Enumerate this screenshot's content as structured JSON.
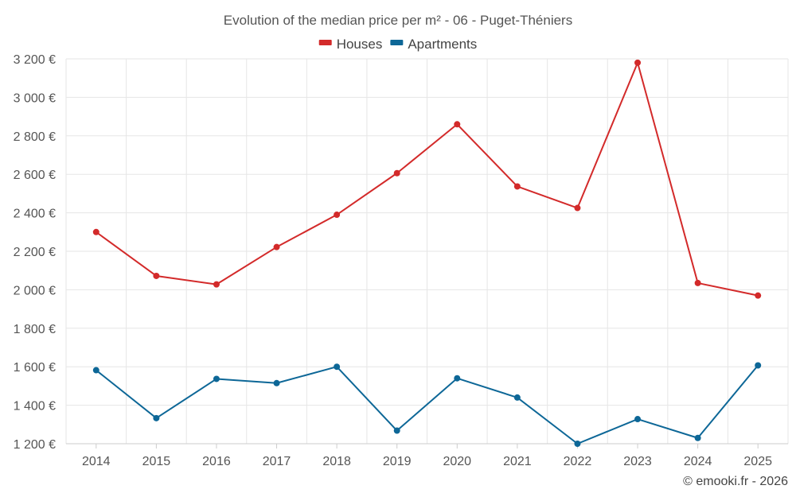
{
  "chart_data": {
    "type": "line",
    "title": "Evolution of the median price per m² - 06 - Puget-Théniers",
    "xlabel": "",
    "ylabel": "",
    "categories": [
      "2014",
      "2015",
      "2016",
      "2017",
      "2018",
      "2019",
      "2020",
      "2021",
      "2022",
      "2023",
      "2024",
      "2025"
    ],
    "ylim": [
      1200,
      3200
    ],
    "yticks": [
      1200,
      1400,
      1600,
      1800,
      2000,
      2200,
      2400,
      2600,
      2800,
      3000,
      3200
    ],
    "ytick_labels": [
      "1 200 €",
      "1 400 €",
      "1 600 €",
      "1 800 €",
      "2 000 €",
      "2 200 €",
      "2 400 €",
      "2 600 €",
      "2 800 €",
      "3 000 €",
      "3 200 €"
    ],
    "grid": true,
    "legend_position": "top-center",
    "series": [
      {
        "name": "Houses",
        "color": "#d32a2a",
        "values": [
          2300,
          2072,
          2028,
          2222,
          2390,
          2606,
          2860,
          2537,
          2425,
          3180,
          2035,
          1970
        ]
      },
      {
        "name": "Apartments",
        "color": "#0d6797",
        "values": [
          1582,
          1333,
          1537,
          1515,
          1600,
          1268,
          1540,
          1440,
          1200,
          1328,
          1230,
          1607
        ]
      }
    ],
    "credit": "© emooki.fr - 2026"
  }
}
